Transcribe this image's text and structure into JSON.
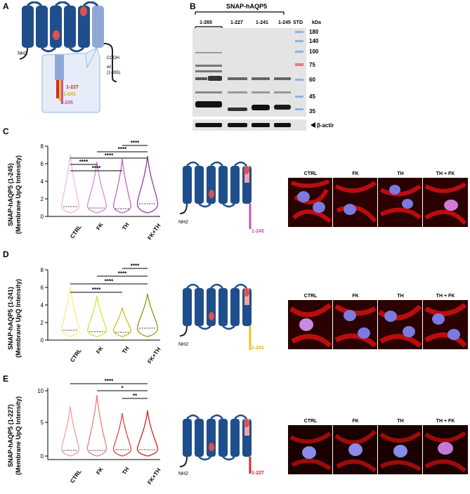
{
  "panels": {
    "A": {
      "letter": "A",
      "labels": {
        "nh2": "NH2",
        "cooh": "COOH",
        "wt": "wt",
        "wt_range": "(1-265)",
        "t227": "1-227",
        "t241": "1-241",
        "t245": "1-245"
      },
      "colors": {
        "helix": "#1f4e8c",
        "pore": "#d9534f",
        "c227": "#d62828",
        "c241": "#e6c619",
        "c245": "#c84fb5",
        "inset": "#e6edf8"
      }
    },
    "B": {
      "letter": "B",
      "title": "SNAP-hAQP5",
      "lanes": [
        "1-265",
        "1-227",
        "1-241",
        "1-245",
        "STD"
      ],
      "kda_unit": "kDa",
      "markers": [
        "180",
        "140",
        "100",
        "75",
        "60",
        "45",
        "35"
      ],
      "actin_label": "β-actin"
    },
    "C": {
      "letter": "C",
      "ylabel_line1": "SNAP-hAQP5 (1-245)",
      "ylabel_line2": "(Membrane UpQ Intensity)",
      "yticks": [
        "8",
        "6",
        "4",
        "2",
        "0"
      ],
      "categories": [
        "CTRL",
        "FK",
        "TH",
        "FK+TH"
      ],
      "significance": [
        "****",
        "****",
        "****",
        "****",
        "****"
      ],
      "truncation_label": "1-245",
      "micro_labels": [
        "CTRL",
        "FK",
        "TH",
        "TH + FK"
      ],
      "colors": [
        "#f2b8e3",
        "#d98ad3",
        "#c067c6",
        "#8e3fa0"
      ],
      "tail_color": "#c84fb5"
    },
    "D": {
      "letter": "D",
      "ylabel_line1": "SNAP-hAQP5 (1-241)",
      "ylabel_line2": "(Membrane UpQ Intensity)",
      "yticks": [
        "8",
        "6",
        "4",
        "2",
        "0"
      ],
      "categories": [
        "CTRL",
        "FK",
        "TH",
        "FK+TH"
      ],
      "significance": [
        "****",
        "****",
        "****",
        "****"
      ],
      "truncation_label": "1-241",
      "micro_labels": [
        "CTRL",
        "FK",
        "TH",
        "TH + FK"
      ],
      "colors": [
        "#f5ef8a",
        "#e3dc3a",
        "#c8bf22",
        "#9a9414"
      ],
      "tail_color": "#e6c619"
    },
    "E": {
      "letter": "E",
      "ylabel_line1": "SNAP-hAQP5 (1-227)",
      "ylabel_line2": "(Membrane UpQ Intensity)",
      "yticks": [
        "10",
        "5",
        "0"
      ],
      "categories": [
        "CTRL",
        "FK",
        "TH",
        "FK+TH"
      ],
      "significance": [
        "****",
        "*",
        "**"
      ],
      "truncation_label": "1-227",
      "micro_labels": [
        "CTRL",
        "FK",
        "TH",
        "TH + FK"
      ],
      "colors": [
        "#f4a1a1",
        "#f07a7a",
        "#e84545",
        "#d62020"
      ],
      "tail_color": "#d62828"
    }
  }
}
